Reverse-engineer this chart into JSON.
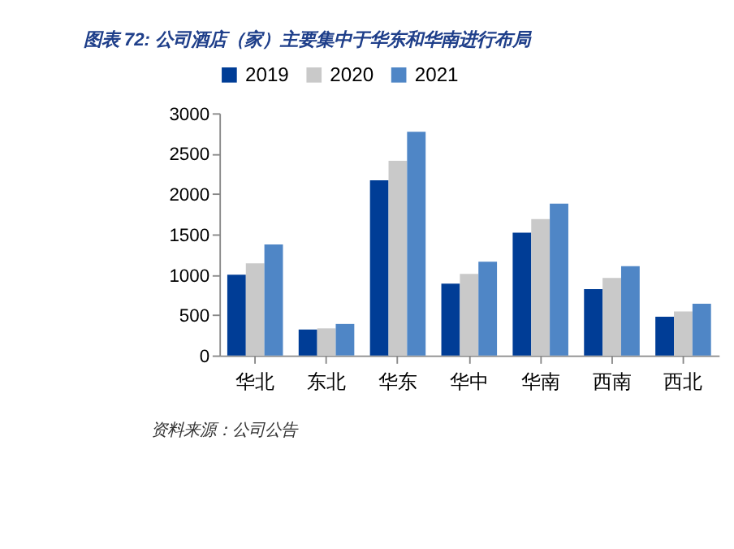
{
  "chart_data": {
    "type": "bar",
    "title": "图表 72: 公司酒店（家）主要集中于华东和华南进行布局",
    "categories": [
      "华北",
      "东北",
      "华东",
      "华中",
      "华南",
      "西南",
      "西北"
    ],
    "series": [
      {
        "name": "2019",
        "color": "#003d96",
        "values": [
          1000,
          320,
          2170,
          890,
          1520,
          820,
          480
        ]
      },
      {
        "name": "2020",
        "color": "#c9c9c9",
        "values": [
          1140,
          335,
          2410,
          1010,
          1690,
          960,
          545
        ]
      },
      {
        "name": "2021",
        "color": "#4f86c6",
        "values": [
          1375,
          390,
          2770,
          1160,
          1880,
          1105,
          640
        ]
      }
    ],
    "ylim": [
      0,
      3000
    ],
    "yticks": [
      0,
      500,
      1000,
      1500,
      2000,
      2500,
      3000
    ],
    "grid": false,
    "legend": "top",
    "annotations": [
      "资料来源：公司公告"
    ]
  }
}
